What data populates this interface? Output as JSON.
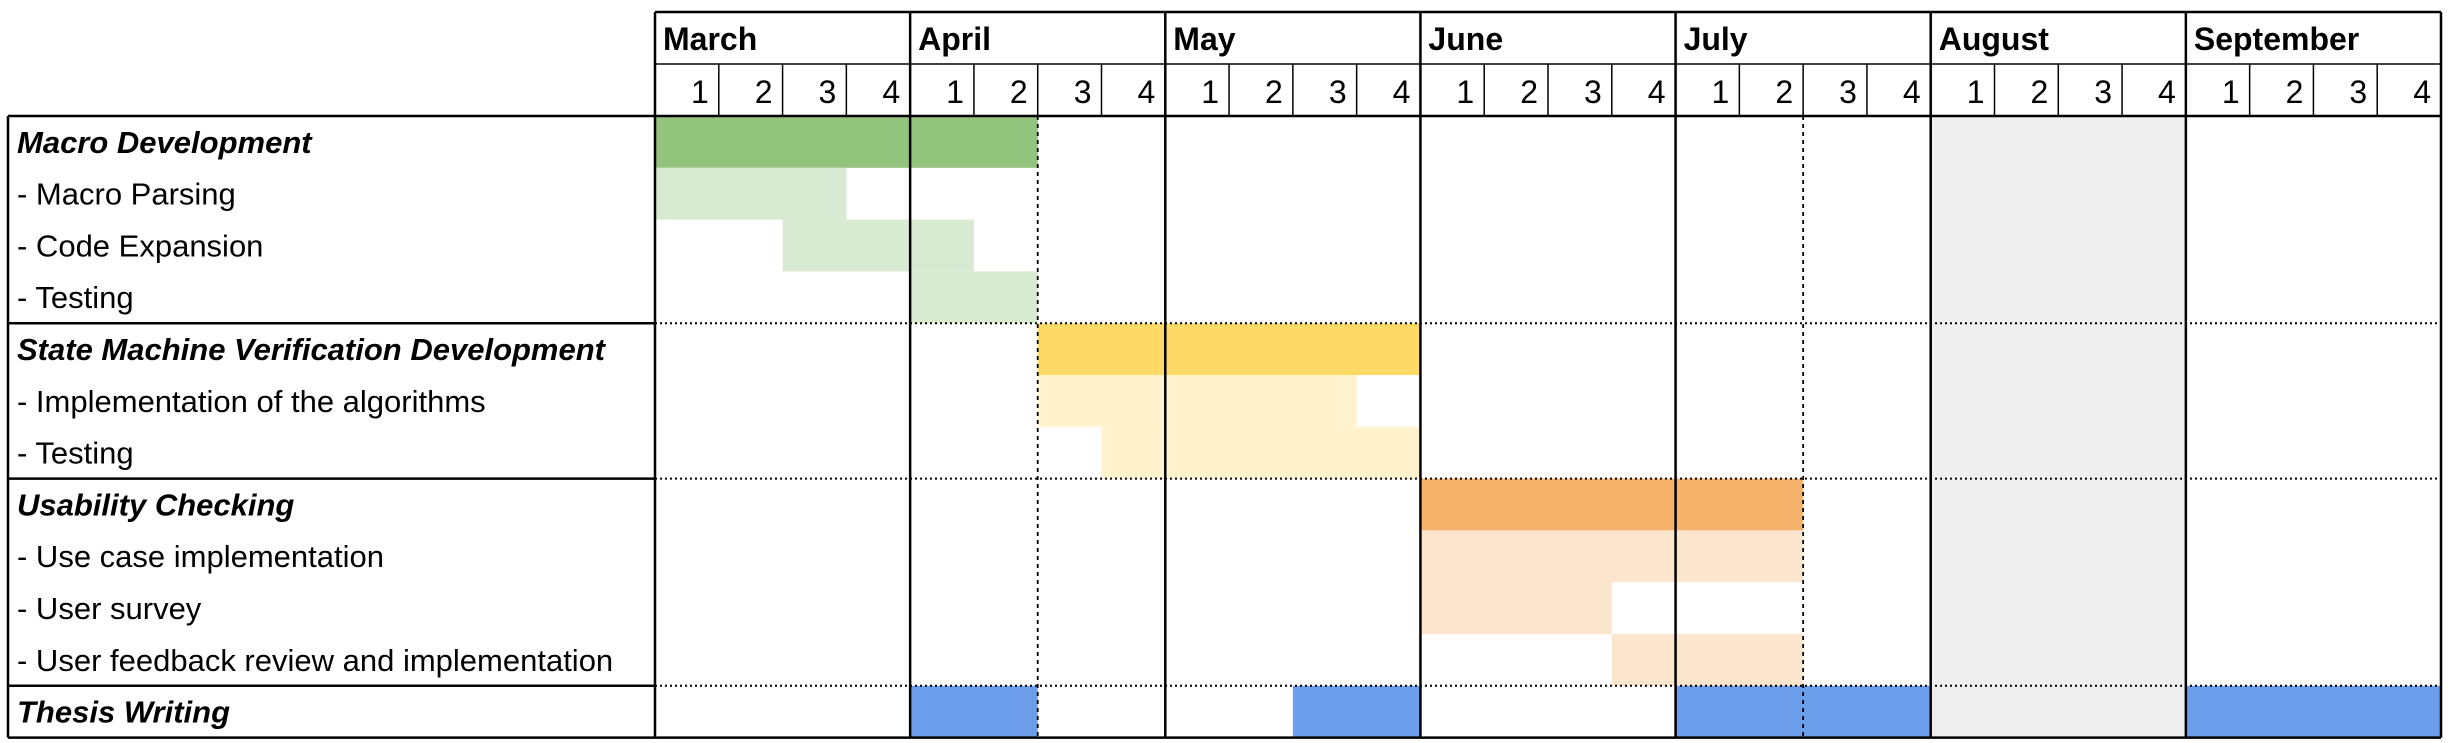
{
  "chart_data": {
    "type": "gantt",
    "months": [
      "March",
      "April",
      "May",
      "June",
      "July",
      "August",
      "September"
    ],
    "week_labels": [
      "1",
      "2",
      "3",
      "4"
    ],
    "highlighted_month": "August",
    "rows": [
      {
        "label": "Macro Development",
        "group": true,
        "color": "#93c47d",
        "bars": [
          [
            0,
            6
          ]
        ]
      },
      {
        "label": "- Macro Parsing",
        "group": false,
        "color": "#d9ead3",
        "bars": [
          [
            0,
            3
          ]
        ]
      },
      {
        "label": "- Code Expansion",
        "group": false,
        "color": "#d9ead3",
        "bars": [
          [
            2,
            5
          ]
        ]
      },
      {
        "label": "- Testing",
        "group": false,
        "color": "#d9ead3",
        "bars": [
          [
            4,
            6
          ]
        ]
      },
      {
        "label": "State Machine Verification Development",
        "group": true,
        "color": "#ffd966",
        "bars": [
          [
            6,
            12
          ]
        ]
      },
      {
        "label": "- Implementation of the algorithms",
        "group": false,
        "color": "#fff2cc",
        "bars": [
          [
            6,
            11
          ]
        ]
      },
      {
        "label": "- Testing",
        "group": false,
        "color": "#fff2cc",
        "bars": [
          [
            7,
            12
          ]
        ]
      },
      {
        "label": "Usability Checking",
        "group": true,
        "color": "#f6b26b",
        "bars": [
          [
            12,
            18
          ]
        ]
      },
      {
        "label": "- Use case implementation",
        "group": false,
        "color": "#fce5cd",
        "bars": [
          [
            12,
            18
          ]
        ]
      },
      {
        "label": "- User survey",
        "group": false,
        "color": "#fce5cd",
        "bars": [
          [
            12,
            15
          ]
        ]
      },
      {
        "label": "- User feedback review and implementation",
        "group": false,
        "color": "#fce5cd",
        "bars": [
          [
            15,
            18
          ]
        ]
      },
      {
        "label": "Thesis Writing",
        "group": true,
        "color": "#6d9eeb",
        "bars": [
          [
            4,
            6
          ],
          [
            10,
            12
          ],
          [
            16,
            20
          ],
          [
            24,
            28
          ]
        ]
      }
    ],
    "grid": true
  },
  "colors": {
    "august_shade": "#efefef",
    "grid_line": "#000000"
  }
}
